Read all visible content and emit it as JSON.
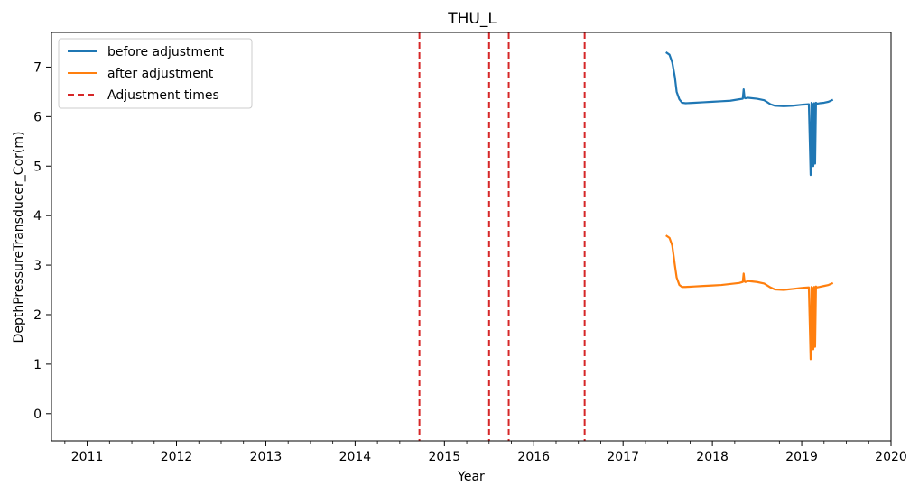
{
  "chart_data": {
    "type": "line",
    "title": "THU_L",
    "xlabel": "Year",
    "ylabel": "DepthPressureTransducer_Cor(m)",
    "xlim": [
      2010.6,
      2020.0
    ],
    "ylim": [
      -0.55,
      7.7
    ],
    "x_ticks": [
      "2011",
      "2012",
      "2013",
      "2014",
      "2015",
      "2016",
      "2017",
      "2018",
      "2019",
      "2020"
    ],
    "y_ticks": [
      "0",
      "1",
      "2",
      "3",
      "4",
      "5",
      "6",
      "7"
    ],
    "grid": false,
    "legend_position": "top-left",
    "series": [
      {
        "name": "before adjustment",
        "color": "#1f77b4",
        "x": [
          2017.48,
          2017.52,
          2017.55,
          2017.58,
          2017.6,
          2017.63,
          2017.66,
          2017.7,
          2017.8,
          2017.9,
          2018.0,
          2018.1,
          2018.2,
          2018.3,
          2018.34,
          2018.35,
          2018.36,
          2018.37,
          2018.4,
          2018.5,
          2018.58,
          2018.65,
          2018.7,
          2018.8,
          2018.9,
          2019.0,
          2019.08,
          2019.1,
          2019.11,
          2019.12,
          2019.13,
          2019.14,
          2019.15,
          2019.16,
          2019.17,
          2019.2,
          2019.25,
          2019.3,
          2019.35
        ],
        "y": [
          7.3,
          7.25,
          7.1,
          6.8,
          6.5,
          6.35,
          6.28,
          6.27,
          6.28,
          6.29,
          6.3,
          6.31,
          6.32,
          6.35,
          6.36,
          6.55,
          6.38,
          6.37,
          6.38,
          6.36,
          6.33,
          6.25,
          6.22,
          6.21,
          6.22,
          6.24,
          6.25,
          4.82,
          6.28,
          6.25,
          5.0,
          6.27,
          5.05,
          6.28,
          6.26,
          6.27,
          6.28,
          6.3,
          6.34
        ]
      },
      {
        "name": "after adjustment",
        "color": "#ff7f0e",
        "x": [
          2017.48,
          2017.52,
          2017.55,
          2017.58,
          2017.6,
          2017.63,
          2017.66,
          2017.7,
          2017.8,
          2017.9,
          2018.0,
          2018.1,
          2018.2,
          2018.3,
          2018.34,
          2018.35,
          2018.36,
          2018.37,
          2018.4,
          2018.5,
          2018.58,
          2018.65,
          2018.7,
          2018.8,
          2018.9,
          2019.0,
          2019.08,
          2019.1,
          2019.11,
          2019.12,
          2019.13,
          2019.14,
          2019.15,
          2019.16,
          2019.17,
          2019.2,
          2019.25,
          2019.3,
          2019.35
        ],
        "y": [
          3.6,
          3.55,
          3.4,
          3.0,
          2.75,
          2.6,
          2.56,
          2.56,
          2.57,
          2.58,
          2.59,
          2.6,
          2.62,
          2.64,
          2.66,
          2.83,
          2.67,
          2.66,
          2.68,
          2.66,
          2.63,
          2.55,
          2.51,
          2.5,
          2.52,
          2.54,
          2.55,
          1.1,
          2.56,
          2.54,
          1.3,
          2.56,
          1.35,
          2.57,
          2.55,
          2.56,
          2.58,
          2.6,
          2.64
        ]
      }
    ],
    "vlines": {
      "name": "Adjustment times",
      "color": "#d62728",
      "x": [
        2014.72,
        2015.5,
        2015.72,
        2016.57
      ]
    }
  }
}
